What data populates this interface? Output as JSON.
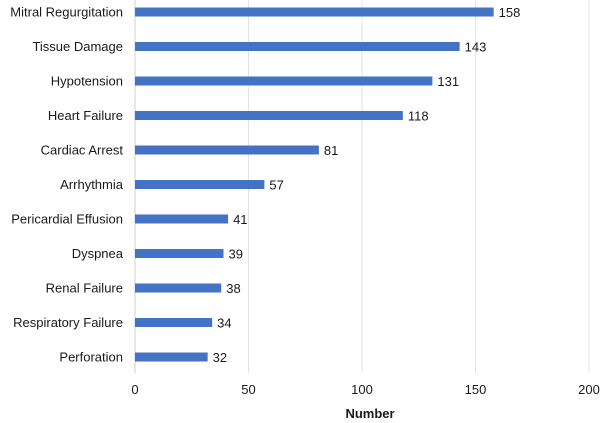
{
  "chart_data": {
    "type": "bar",
    "orientation": "horizontal",
    "categories": [
      "Mitral Regurgitation",
      "Tissue Damage",
      "Hypotension",
      "Heart Failure",
      "Cardiac Arrest",
      "Arrhythmia",
      "Pericardial Effusion",
      "Dyspnea",
      "Renal Failure",
      "Respiratory Failure",
      "Perforation"
    ],
    "values": [
      158,
      143,
      131,
      118,
      81,
      57,
      41,
      39,
      38,
      34,
      32
    ],
    "data_labels": [
      "158",
      "143",
      "131",
      "118",
      "81",
      "57",
      "41",
      "39",
      "38",
      "34",
      "32"
    ],
    "title": "",
    "xlabel": "Number",
    "ylabel": "",
    "xlim": [
      0,
      200
    ],
    "x_ticks": [
      0,
      50,
      100,
      150,
      200
    ],
    "x_tick_labels": [
      "0",
      "50",
      "100",
      "150",
      "200"
    ],
    "grid": "vertical",
    "legend": "none",
    "bar_color": "#4472c4"
  }
}
